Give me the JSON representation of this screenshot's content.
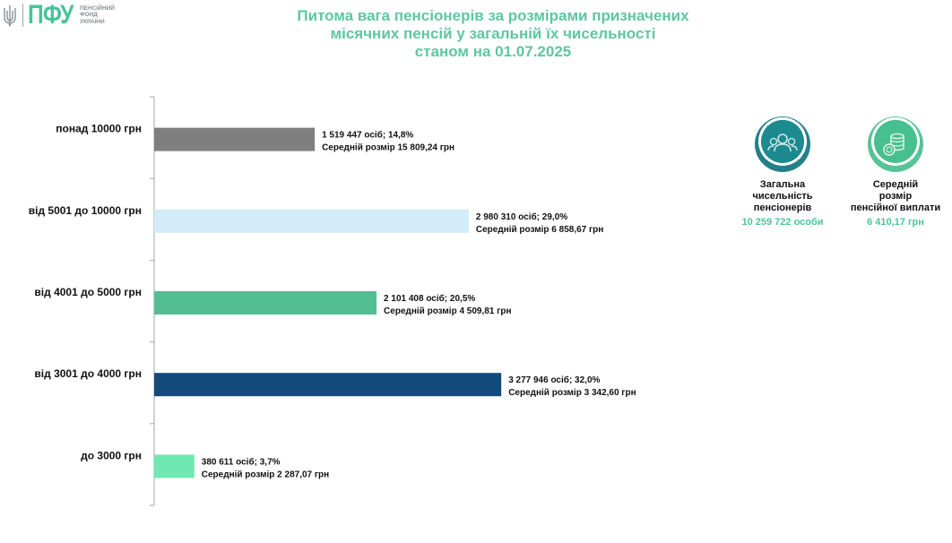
{
  "logo": {
    "text": "ПФУ",
    "fund_name": [
      "ПЕНСІЙНИЙ",
      "ФОНД",
      "УКРАЇНИ"
    ]
  },
  "title_lines": [
    "Питома вага пенсіонерів за розмірами призначених",
    "місячних пенсій у загальній їх чисельності",
    "станом на 01.07.2025"
  ],
  "chart_data": {
    "type": "bar",
    "orientation": "horizontal",
    "categories": [
      "понад 10000 грн",
      "від 5001 до 10000 грн",
      "від 4001 до 5000 грн",
      "від 3001 до 4000 грн",
      "до 3000 грн"
    ],
    "values": [
      14.8,
      29.0,
      20.5,
      32.0,
      3.7
    ],
    "counts": [
      "1 519 447 осіб;  14,8%",
      "2 980 310 осіб; 29,0%",
      "2 101 408 осіб; 20,5%",
      "3 277 946 осіб; 32,0%",
      "380 611 осіб; 3,7%"
    ],
    "averages": [
      "Середній розмір 15 809,24 грн",
      "Середній розмір 6 858,67 грн",
      "Середній розмір 4 509,81 грн",
      "Середній розмір 3 342,60 грн",
      "Середній розмір 2 287,07 грн"
    ],
    "colors": [
      "#7f7f7f",
      "#d2ecfa",
      "#52be92",
      "#134a7c",
      "#6fe8b2"
    ],
    "grid": false
  },
  "kpis": [
    {
      "icon": "people-icon",
      "label_lines": [
        "Загальна",
        "чисельність",
        "пенсіонерів"
      ],
      "value": "10 259 722 особи",
      "color": "#1e7f88"
    },
    {
      "icon": "coins-icon",
      "label_lines": [
        "Середній",
        "розмір",
        "пенсійної виплати"
      ],
      "value": "6 410,17 грн",
      "color": "#4cc49a"
    }
  ]
}
